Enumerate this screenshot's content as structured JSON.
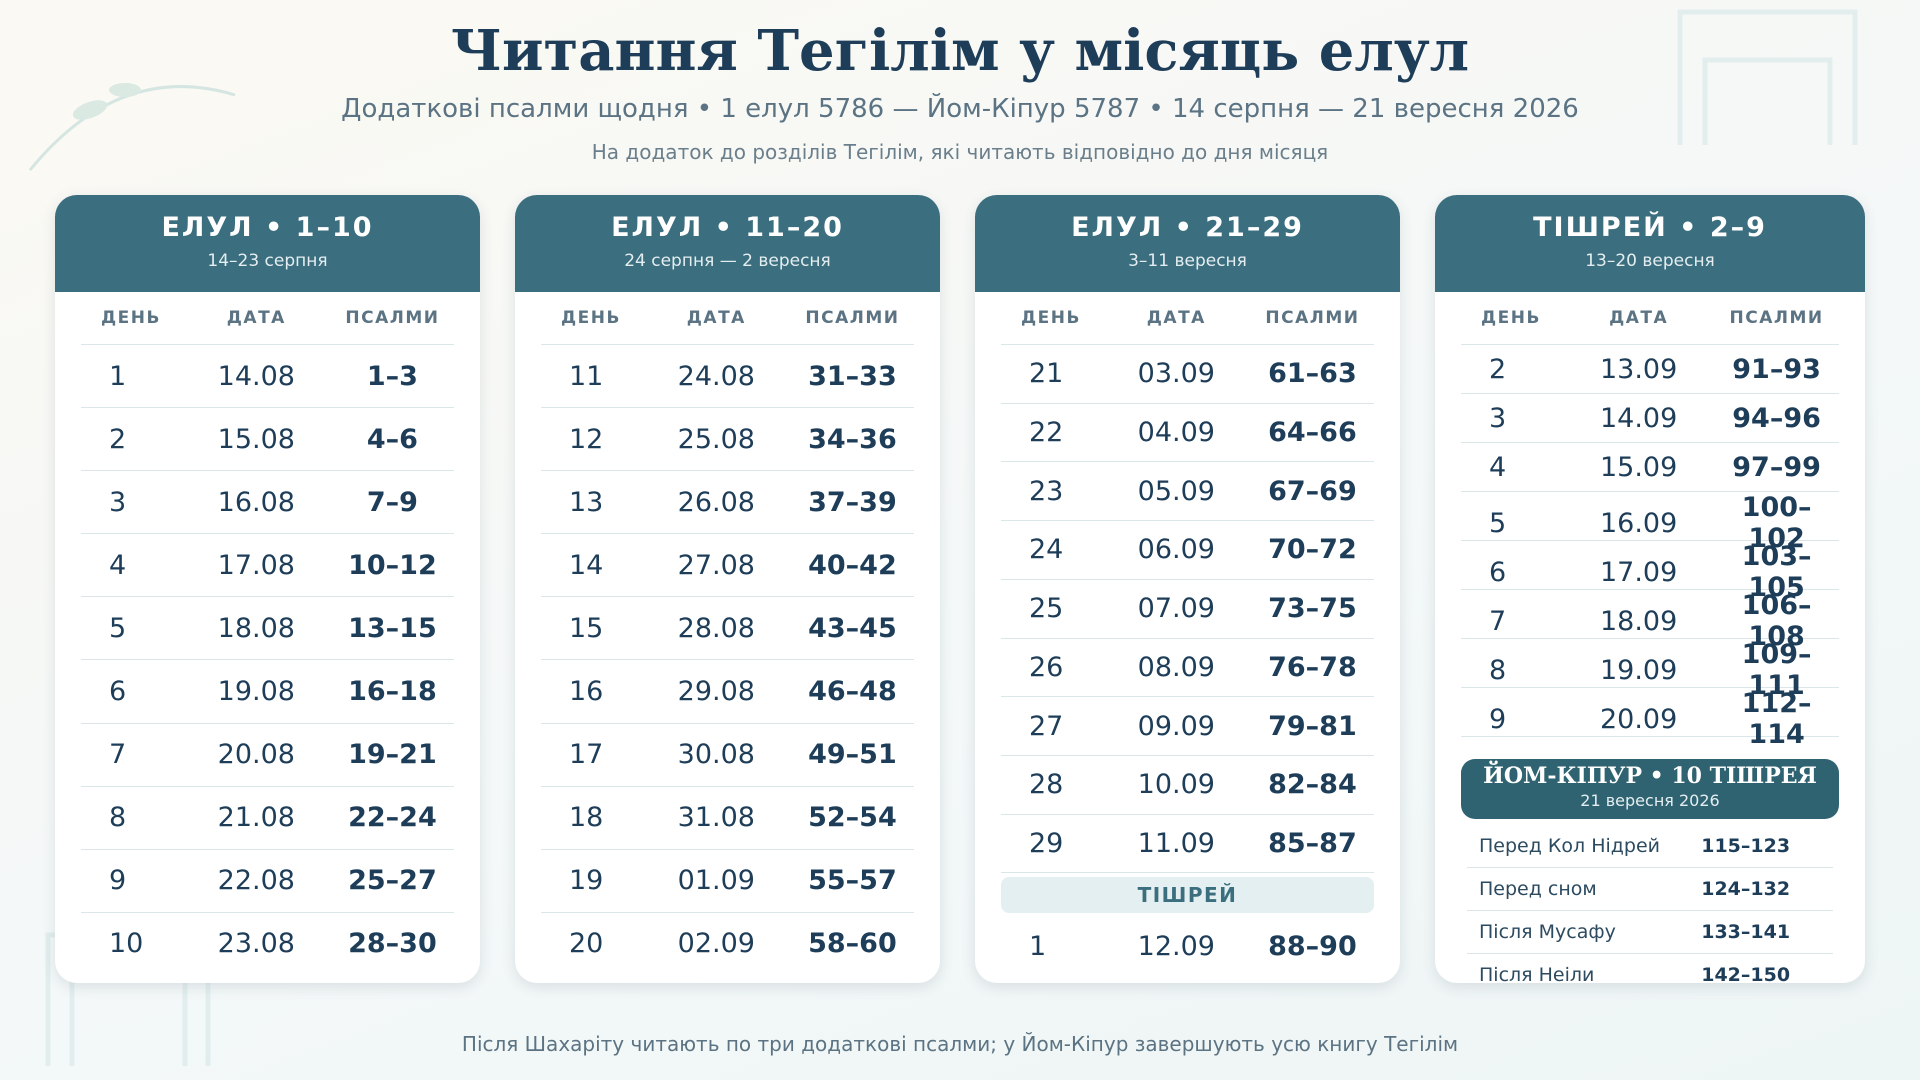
{
  "header": {
    "title": "Читання Тегілім у місяць елул",
    "subtitle": "Додаткові псалми щодня • 1 елул 5786 — Йом-Кіпур 5787 • 14 серпня — 21 вересня 2026",
    "note": "На додаток до розділів Тегілім, які читають відповідно до дня місяця"
  },
  "columns": [
    "ДЕНЬ",
    "ДАТА",
    "ПСАЛМИ"
  ],
  "cards": [
    {
      "title": "ЕЛУЛ • 1–10",
      "dates": "14–23 серпня",
      "rows": [
        [
          "1",
          "14.08",
          "1–3"
        ],
        [
          "2",
          "15.08",
          "4–6"
        ],
        [
          "3",
          "16.08",
          "7–9"
        ],
        [
          "4",
          "17.08",
          "10–12"
        ],
        [
          "5",
          "18.08",
          "13–15"
        ],
        [
          "6",
          "19.08",
          "16–18"
        ],
        [
          "7",
          "20.08",
          "19–21"
        ],
        [
          "8",
          "21.08",
          "22–24"
        ],
        [
          "9",
          "22.08",
          "25–27"
        ],
        [
          "10",
          "23.08",
          "28–30"
        ]
      ]
    },
    {
      "title": "ЕЛУЛ • 11–20",
      "dates": "24 серпня — 2 вересня",
      "rows": [
        [
          "11",
          "24.08",
          "31–33"
        ],
        [
          "12",
          "25.08",
          "34–36"
        ],
        [
          "13",
          "26.08",
          "37–39"
        ],
        [
          "14",
          "27.08",
          "40–42"
        ],
        [
          "15",
          "28.08",
          "43–45"
        ],
        [
          "16",
          "29.08",
          "46–48"
        ],
        [
          "17",
          "30.08",
          "49–51"
        ],
        [
          "18",
          "31.08",
          "52–54"
        ],
        [
          "19",
          "01.09",
          "55–57"
        ],
        [
          "20",
          "02.09",
          "58–60"
        ]
      ]
    },
    {
      "title": "ЕЛУЛ • 21–29",
      "dates": "3–11 вересня",
      "rows": [
        [
          "21",
          "03.09",
          "61–63"
        ],
        [
          "22",
          "04.09",
          "64–66"
        ],
        [
          "23",
          "05.09",
          "67–69"
        ],
        [
          "24",
          "06.09",
          "70–72"
        ],
        [
          "25",
          "07.09",
          "73–75"
        ],
        [
          "26",
          "08.09",
          "76–78"
        ],
        [
          "27",
          "09.09",
          "79–81"
        ],
        [
          "28",
          "10.09",
          "82–84"
        ],
        [
          "29",
          "11.09",
          "85–87"
        ]
      ],
      "section": "ТІШРЕЙ",
      "section_rows": [
        [
          "1",
          "12.09",
          "88–90"
        ]
      ]
    },
    {
      "title": "ТІШРЕЙ • 2–9",
      "dates": "13–20 вересня",
      "rows": [
        [
          "2",
          "13.09",
          "91–93"
        ],
        [
          "3",
          "14.09",
          "94–96"
        ],
        [
          "4",
          "15.09",
          "97–99"
        ],
        [
          "5",
          "16.09",
          "100–102"
        ],
        [
          "6",
          "17.09",
          "103–105"
        ],
        [
          "7",
          "18.09",
          "106–108"
        ],
        [
          "8",
          "19.09",
          "109–111"
        ],
        [
          "9",
          "20.09",
          "112–114"
        ]
      ],
      "special": {
        "title": "ЙОМ-КІПУР • 10 ТІШРЕЯ",
        "date": "21 вересня 2026",
        "rows": [
          [
            "Перед Кол Нідрей",
            "115–123"
          ],
          [
            "Перед сном",
            "124–132"
          ],
          [
            "Після Мусафу",
            "133–141"
          ],
          [
            "Після Неіли",
            "142–150"
          ]
        ]
      }
    }
  ],
  "footer": "Після Шахаріту читають по три додаткові псалми; у Йом-Кіпур завершують усю книгу Тегілім"
}
